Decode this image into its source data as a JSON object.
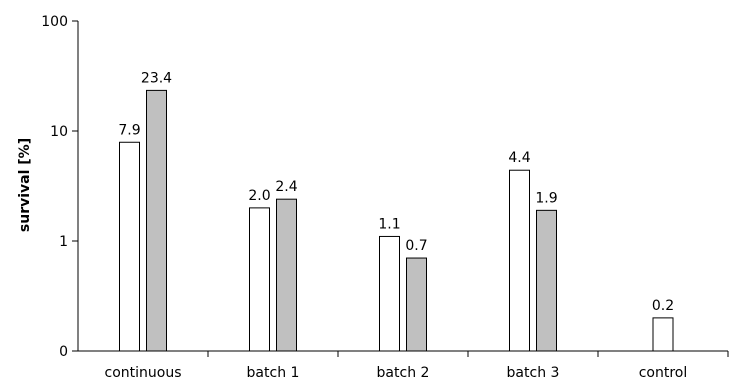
{
  "chart_data": {
    "type": "bar",
    "categories": [
      "continuous",
      "batch 1",
      "batch 2",
      "batch 3",
      "control"
    ],
    "series": [
      {
        "values": [
          7.9,
          2.0,
          1.1,
          4.4,
          0.2
        ],
        "color": "#ffffff",
        "labels": [
          "7.9",
          "2.0",
          "1.1",
          "4.4",
          "0.2"
        ]
      },
      {
        "values": [
          23.4,
          2.4,
          0.7,
          1.9,
          null
        ],
        "color": "#c0c0c0",
        "labels": [
          "23.4",
          "2.4",
          "0.7",
          "1.9",
          ""
        ]
      }
    ],
    "ylabel": "survival [%]",
    "yscale": "log",
    "yticks": [
      0.1,
      1,
      10,
      100
    ],
    "ytick_labels": [
      "0",
      "1",
      "10",
      "100"
    ],
    "ylim": [
      0.1,
      100
    ],
    "grid": false,
    "legend": "none"
  }
}
